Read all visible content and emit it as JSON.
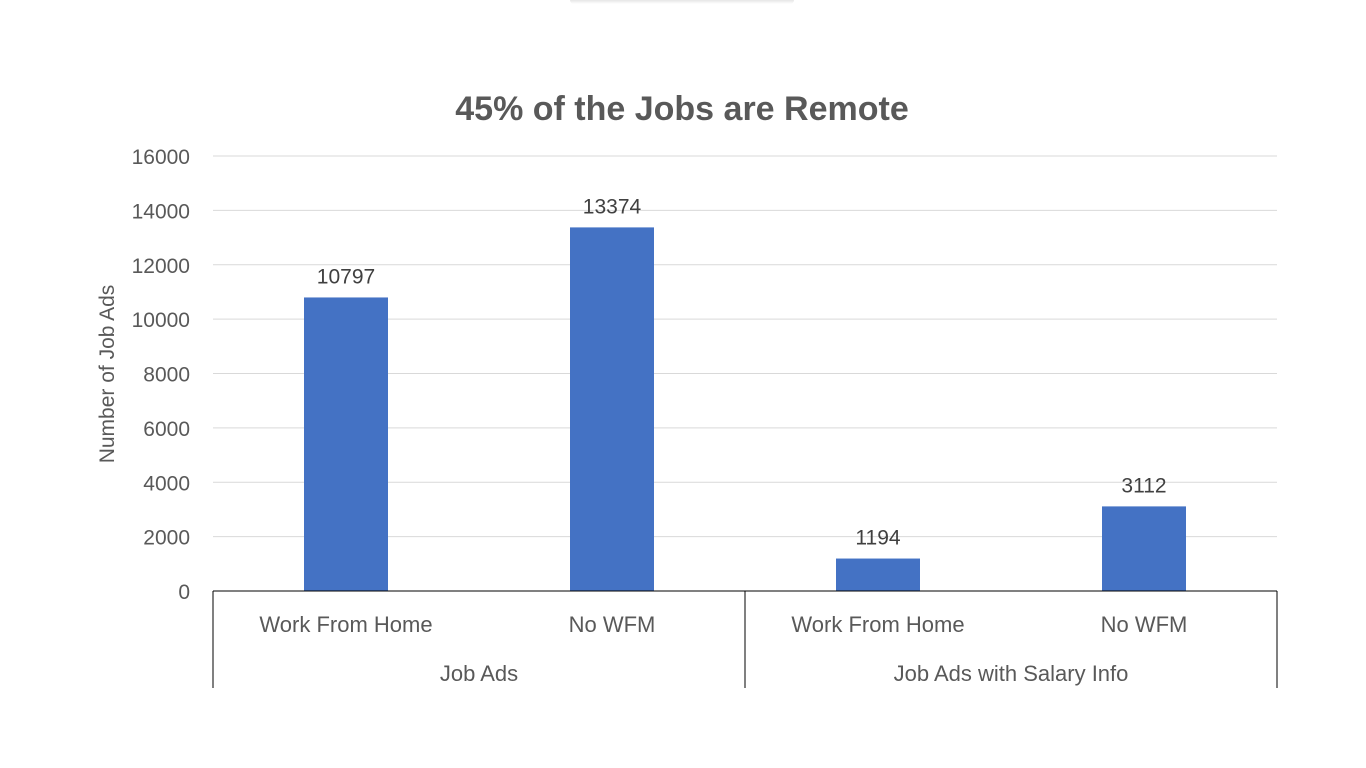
{
  "chart_data": {
    "type": "bar",
    "title": "45% of the Jobs are Remote",
    "ylabel": "Number of Job Ads",
    "xlabel": "",
    "ylim": [
      0,
      16000
    ],
    "yticks": [
      0,
      2000,
      4000,
      6000,
      8000,
      10000,
      12000,
      14000,
      16000
    ],
    "grid": true,
    "legend": "none",
    "bar_color": "#4472C4",
    "groups": [
      {
        "label": "Job Ads",
        "categories": [
          "Work From Home",
          "No WFM"
        ],
        "values": [
          10797,
          13374
        ]
      },
      {
        "label": "Job Ads with Salary Info",
        "categories": [
          "Work From Home",
          "No WFM"
        ],
        "values": [
          1194,
          3112
        ]
      }
    ]
  }
}
